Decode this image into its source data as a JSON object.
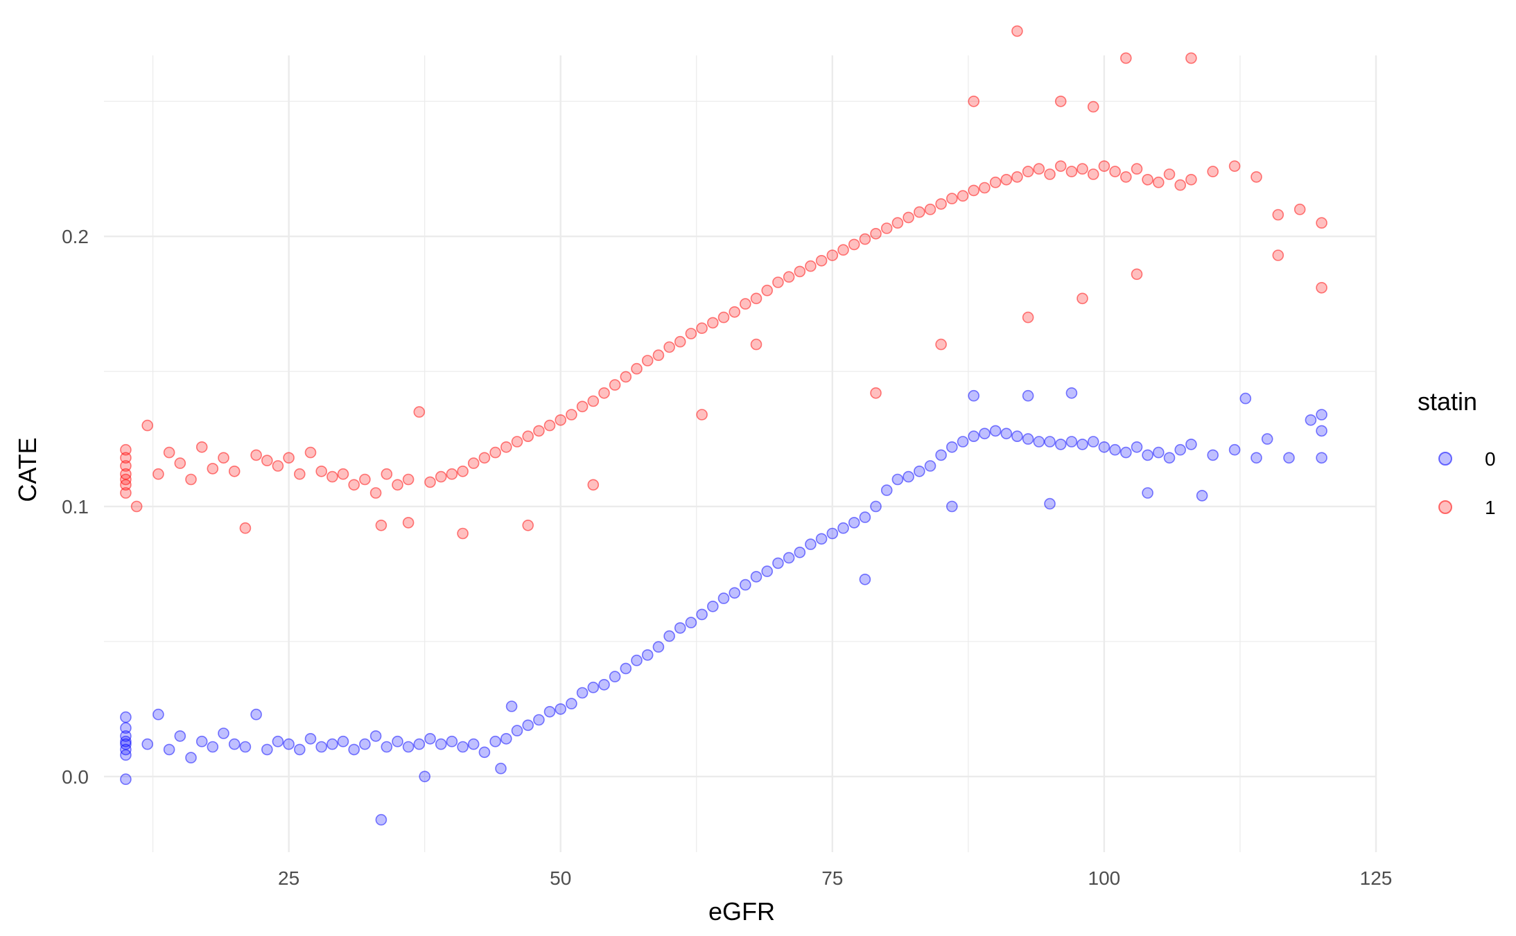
{
  "chart_data": {
    "type": "scatter",
    "title": "",
    "xlabel": "eGFR",
    "ylabel": "CATE",
    "xlim": [
      8,
      125
    ],
    "ylim": [
      -0.028,
      0.267
    ],
    "x_ticks": [
      25,
      50,
      75,
      100,
      125
    ],
    "y_ticks": [
      0.0,
      0.1,
      0.2
    ],
    "x_tick_labels": [
      "25",
      "50",
      "75",
      "100",
      "125"
    ],
    "y_tick_labels": [
      "0.0",
      "0.1",
      "0.2"
    ],
    "grid": true,
    "legend": {
      "title": "statin",
      "position": "right"
    },
    "series": [
      {
        "name": "0",
        "color": "#0000ff",
        "opacity": 0.25,
        "points": [
          [
            10,
            0.012
          ],
          [
            10,
            0.015
          ],
          [
            10,
            0.008
          ],
          [
            10,
            0.018
          ],
          [
            10,
            0.01
          ],
          [
            10,
            0.013
          ],
          [
            10,
            0.022
          ],
          [
            10,
            -0.001
          ],
          [
            12,
            0.012
          ],
          [
            13,
            0.023
          ],
          [
            14,
            0.01
          ],
          [
            15,
            0.015
          ],
          [
            16,
            0.007
          ],
          [
            17,
            0.013
          ],
          [
            18,
            0.011
          ],
          [
            19,
            0.016
          ],
          [
            20,
            0.012
          ],
          [
            21,
            0.011
          ],
          [
            22,
            0.023
          ],
          [
            23,
            0.01
          ],
          [
            24,
            0.013
          ],
          [
            25,
            0.012
          ],
          [
            26,
            0.01
          ],
          [
            27,
            0.014
          ],
          [
            28,
            0.011
          ],
          [
            29,
            0.012
          ],
          [
            30,
            0.013
          ],
          [
            31,
            0.01
          ],
          [
            32,
            0.012
          ],
          [
            33,
            0.015
          ],
          [
            33.5,
            -0.016
          ],
          [
            34,
            0.011
          ],
          [
            35,
            0.013
          ],
          [
            36,
            0.011
          ],
          [
            37,
            0.012
          ],
          [
            37.5,
            0.0
          ],
          [
            38,
            0.014
          ],
          [
            39,
            0.012
          ],
          [
            40,
            0.013
          ],
          [
            41,
            0.011
          ],
          [
            42,
            0.012
          ],
          [
            43,
            0.009
          ],
          [
            44,
            0.013
          ],
          [
            44.5,
            0.003
          ],
          [
            45,
            0.014
          ],
          [
            45.5,
            0.026
          ],
          [
            46,
            0.017
          ],
          [
            47,
            0.019
          ],
          [
            48,
            0.021
          ],
          [
            49,
            0.024
          ],
          [
            50,
            0.025
          ],
          [
            51,
            0.027
          ],
          [
            52,
            0.031
          ],
          [
            53,
            0.033
          ],
          [
            54,
            0.034
          ],
          [
            55,
            0.037
          ],
          [
            56,
            0.04
          ],
          [
            57,
            0.043
          ],
          [
            58,
            0.045
          ],
          [
            59,
            0.048
          ],
          [
            60,
            0.052
          ],
          [
            61,
            0.055
          ],
          [
            62,
            0.057
          ],
          [
            63,
            0.06
          ],
          [
            64,
            0.063
          ],
          [
            65,
            0.066
          ],
          [
            66,
            0.068
          ],
          [
            67,
            0.071
          ],
          [
            68,
            0.074
          ],
          [
            69,
            0.076
          ],
          [
            70,
            0.079
          ],
          [
            71,
            0.081
          ],
          [
            72,
            0.083
          ],
          [
            73,
            0.086
          ],
          [
            74,
            0.088
          ],
          [
            75,
            0.09
          ],
          [
            76,
            0.092
          ],
          [
            77,
            0.094
          ],
          [
            78,
            0.096
          ],
          [
            79,
            0.1
          ],
          [
            80,
            0.106
          ],
          [
            81,
            0.11
          ],
          [
            82,
            0.111
          ],
          [
            83,
            0.113
          ],
          [
            84,
            0.115
          ],
          [
            85,
            0.119
          ],
          [
            86,
            0.122
          ],
          [
            87,
            0.124
          ],
          [
            88,
            0.126
          ],
          [
            89,
            0.127
          ],
          [
            90,
            0.128
          ],
          [
            91,
            0.127
          ],
          [
            92,
            0.126
          ],
          [
            93,
            0.125
          ],
          [
            94,
            0.124
          ],
          [
            95,
            0.124
          ],
          [
            96,
            0.123
          ],
          [
            97,
            0.124
          ],
          [
            98,
            0.123
          ],
          [
            99,
            0.124
          ],
          [
            100,
            0.122
          ],
          [
            101,
            0.121
          ],
          [
            102,
            0.12
          ],
          [
            103,
            0.122
          ],
          [
            104,
            0.119
          ],
          [
            105,
            0.12
          ],
          [
            106,
            0.118
          ],
          [
            107,
            0.121
          ],
          [
            108,
            0.123
          ],
          [
            110,
            0.119
          ],
          [
            112,
            0.121
          ],
          [
            113,
            0.14
          ],
          [
            114,
            0.118
          ],
          [
            115,
            0.125
          ],
          [
            117,
            0.118
          ],
          [
            119,
            0.132
          ],
          [
            120,
            0.134
          ],
          [
            120,
            0.128
          ],
          [
            120,
            0.118
          ],
          [
            78,
            0.073
          ],
          [
            86,
            0.1
          ],
          [
            95,
            0.101
          ],
          [
            104,
            0.105
          ],
          [
            109,
            0.104
          ],
          [
            88,
            0.141
          ],
          [
            93,
            0.141
          ],
          [
            97,
            0.142
          ]
        ]
      },
      {
        "name": "1",
        "color": "#ff0000",
        "opacity": 0.25,
        "points": [
          [
            10,
            0.112
          ],
          [
            10,
            0.108
          ],
          [
            10,
            0.118
          ],
          [
            10,
            0.115
          ],
          [
            10,
            0.121
          ],
          [
            10,
            0.105
          ],
          [
            10,
            0.11
          ],
          [
            11,
            0.1
          ],
          [
            12,
            0.13
          ],
          [
            13,
            0.112
          ],
          [
            14,
            0.12
          ],
          [
            15,
            0.116
          ],
          [
            16,
            0.11
          ],
          [
            17,
            0.122
          ],
          [
            18,
            0.114
          ],
          [
            19,
            0.118
          ],
          [
            20,
            0.113
          ],
          [
            21,
            0.092
          ],
          [
            22,
            0.119
          ],
          [
            23,
            0.117
          ],
          [
            24,
            0.115
          ],
          [
            25,
            0.118
          ],
          [
            26,
            0.112
          ],
          [
            27,
            0.12
          ],
          [
            28,
            0.113
          ],
          [
            29,
            0.111
          ],
          [
            30,
            0.112
          ],
          [
            31,
            0.108
          ],
          [
            32,
            0.11
          ],
          [
            33,
            0.105
          ],
          [
            33.5,
            0.093
          ],
          [
            34,
            0.112
          ],
          [
            35,
            0.108
          ],
          [
            36,
            0.11
          ],
          [
            37,
            0.135
          ],
          [
            38,
            0.109
          ],
          [
            39,
            0.111
          ],
          [
            40,
            0.112
          ],
          [
            41,
            0.113
          ],
          [
            42,
            0.116
          ],
          [
            43,
            0.118
          ],
          [
            44,
            0.12
          ],
          [
            45,
            0.122
          ],
          [
            46,
            0.124
          ],
          [
            47,
            0.126
          ],
          [
            48,
            0.128
          ],
          [
            49,
            0.13
          ],
          [
            50,
            0.132
          ],
          [
            51,
            0.134
          ],
          [
            52,
            0.137
          ],
          [
            53,
            0.139
          ],
          [
            54,
            0.142
          ],
          [
            55,
            0.145
          ],
          [
            56,
            0.148
          ],
          [
            57,
            0.151
          ],
          [
            58,
            0.154
          ],
          [
            59,
            0.156
          ],
          [
            60,
            0.159
          ],
          [
            61,
            0.161
          ],
          [
            62,
            0.164
          ],
          [
            63,
            0.166
          ],
          [
            64,
            0.168
          ],
          [
            65,
            0.17
          ],
          [
            66,
            0.172
          ],
          [
            67,
            0.175
          ],
          [
            68,
            0.177
          ],
          [
            69,
            0.18
          ],
          [
            70,
            0.183
          ],
          [
            71,
            0.185
          ],
          [
            72,
            0.187
          ],
          [
            73,
            0.189
          ],
          [
            74,
            0.191
          ],
          [
            75,
            0.193
          ],
          [
            76,
            0.195
          ],
          [
            77,
            0.197
          ],
          [
            78,
            0.199
          ],
          [
            79,
            0.201
          ],
          [
            80,
            0.203
          ],
          [
            81,
            0.205
          ],
          [
            82,
            0.207
          ],
          [
            83,
            0.209
          ],
          [
            84,
            0.21
          ],
          [
            85,
            0.212
          ],
          [
            86,
            0.214
          ],
          [
            87,
            0.215
          ],
          [
            88,
            0.217
          ],
          [
            89,
            0.218
          ],
          [
            90,
            0.22
          ],
          [
            91,
            0.221
          ],
          [
            92,
            0.222
          ],
          [
            93,
            0.224
          ],
          [
            94,
            0.225
          ],
          [
            95,
            0.223
          ],
          [
            96,
            0.226
          ],
          [
            97,
            0.224
          ],
          [
            98,
            0.225
          ],
          [
            99,
            0.223
          ],
          [
            100,
            0.226
          ],
          [
            101,
            0.224
          ],
          [
            102,
            0.222
          ],
          [
            103,
            0.225
          ],
          [
            104,
            0.221
          ],
          [
            105,
            0.22
          ],
          [
            106,
            0.223
          ],
          [
            107,
            0.219
          ],
          [
            108,
            0.221
          ],
          [
            110,
            0.224
          ],
          [
            112,
            0.226
          ],
          [
            114,
            0.222
          ],
          [
            116,
            0.208
          ],
          [
            118,
            0.21
          ],
          [
            120,
            0.205
          ],
          [
            120,
            0.181
          ],
          [
            116,
            0.193
          ],
          [
            92,
            0.276
          ],
          [
            102,
            0.266
          ],
          [
            108,
            0.266
          ],
          [
            93,
            0.17
          ],
          [
            98,
            0.177
          ],
          [
            103,
            0.186
          ],
          [
            68,
            0.16
          ],
          [
            63,
            0.134
          ],
          [
            79,
            0.142
          ],
          [
            41,
            0.09
          ],
          [
            47,
            0.093
          ],
          [
            53,
            0.108
          ],
          [
            36,
            0.094
          ],
          [
            85,
            0.16
          ],
          [
            88,
            0.25
          ],
          [
            96,
            0.25
          ],
          [
            99,
            0.248
          ]
        ]
      }
    ]
  }
}
